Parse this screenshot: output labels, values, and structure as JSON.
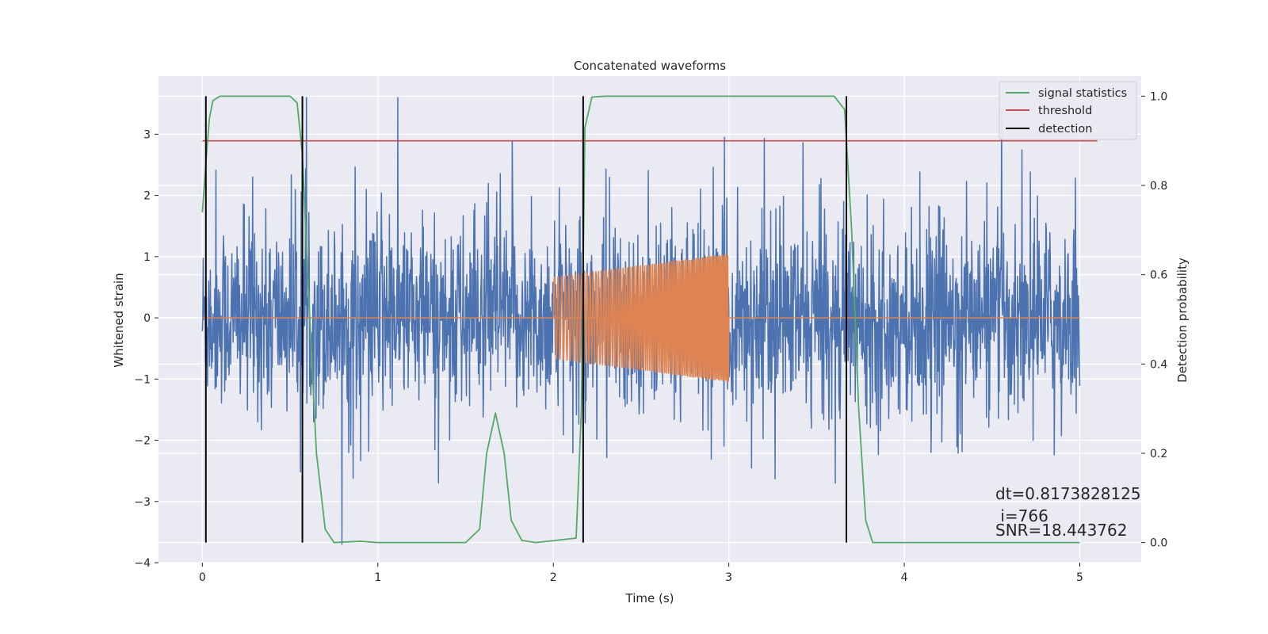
{
  "chart_data": {
    "type": "line",
    "title": "Concatenated waveforms",
    "xlabel": "Time (s)",
    "ylabel_left": "Whitened strain",
    "ylabel_right": "Detection probability",
    "xlim": [
      -0.25,
      5.35
    ],
    "ylim_left": [
      -4.0,
      3.95
    ],
    "ylim_right": [
      -0.045,
      1.045
    ],
    "x_ticks": [
      0,
      1,
      2,
      3,
      4,
      5
    ],
    "x_tick_labels": [
      "0",
      "1",
      "2",
      "3",
      "4",
      "5"
    ],
    "y_left_ticks": [
      -4,
      -3,
      -2,
      -1,
      0,
      1,
      2,
      3
    ],
    "y_left_tick_labels": [
      "−4",
      "−3",
      "−2",
      "−1",
      "0",
      "1",
      "2",
      "3"
    ],
    "y_right_ticks": [
      0.0,
      0.2,
      0.4,
      0.6,
      0.8,
      1.0
    ],
    "y_right_tick_labels": [
      "0.0",
      "0.2",
      "0.4",
      "0.6",
      "0.8",
      "1.0"
    ],
    "grid": true,
    "legend_position": "top-right",
    "series": [
      {
        "name": "",
        "kind": "noise",
        "axis": "left",
        "color": "#4c72b0",
        "x_range": [
          0,
          5
        ],
        "typical_amplitude": 0.7,
        "max_value": 3.6,
        "min_value": -3.7
      },
      {
        "name": "",
        "kind": "chirp",
        "axis": "left",
        "color": "#dd8452",
        "x_range": [
          2.0,
          3.0
        ],
        "amplitude_start": 0.67,
        "amplitude_end": 1.05,
        "baseline": 0
      },
      {
        "name": "signal statistics",
        "axis": "right",
        "color": "#55a868",
        "x": [
          0.0,
          0.02,
          0.04,
          0.06,
          0.1,
          0.5,
          0.54,
          0.57,
          0.6,
          0.65,
          0.7,
          0.75,
          0.9,
          1.0,
          1.5,
          1.58,
          1.62,
          1.67,
          1.72,
          1.76,
          1.82,
          1.9,
          2.13,
          2.16,
          2.18,
          2.22,
          2.3,
          3.6,
          3.66,
          3.7,
          3.74,
          3.78,
          3.82,
          5.0
        ],
        "y": [
          0.74,
          0.85,
          0.95,
          0.99,
          1.0,
          1.0,
          0.985,
          0.87,
          0.6,
          0.2,
          0.03,
          0.0,
          0.003,
          0.0,
          0.0,
          0.03,
          0.2,
          0.29,
          0.2,
          0.05,
          0.005,
          0.0,
          0.01,
          0.3,
          0.93,
          0.998,
          1.0,
          1.0,
          0.97,
          0.7,
          0.3,
          0.05,
          0.0,
          0.0
        ]
      },
      {
        "name": "threshold",
        "axis": "right",
        "color": "#c44e52",
        "x": [
          0.0,
          5.1
        ],
        "y": [
          0.9,
          0.9
        ]
      },
      {
        "name": "detection",
        "axis": "right",
        "color": "#000000",
        "vertical_lines_x": [
          0.02,
          0.57,
          2.17,
          3.67
        ],
        "y_range": [
          0.0,
          1.0
        ]
      }
    ],
    "annotations": {
      "dt": "dt=0.8173828125",
      "i": " i=766",
      "snr": "SNR=18.443762"
    }
  }
}
